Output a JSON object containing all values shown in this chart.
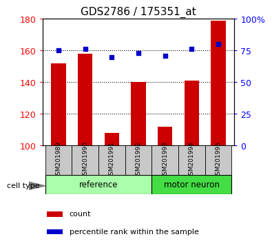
{
  "title": "GDS2786 / 175351_at",
  "categories": [
    "GSM201989",
    "GSM201990",
    "GSM201991",
    "GSM201992",
    "GSM201993",
    "GSM201994",
    "GSM201995"
  ],
  "bar_values": [
    152,
    158,
    108,
    140,
    112,
    141,
    179
  ],
  "scatter_values": [
    75,
    76,
    70,
    73,
    71,
    76,
    80
  ],
  "bar_color": "#cc0000",
  "scatter_color": "#0000cc",
  "ylim_left": [
    100,
    180
  ],
  "ylim_right": [
    0,
    100
  ],
  "yticks_left": [
    100,
    120,
    140,
    160,
    180
  ],
  "yticks_right": [
    0,
    25,
    50,
    75,
    100
  ],
  "ytick_labels_right": [
    "0",
    "25",
    "50",
    "75",
    "100%"
  ],
  "group_ref_label": "reference",
  "group_mn_label": "motor neuron",
  "ref_count": 4,
  "cell_type_label": "cell type",
  "legend_bar_label": "count",
  "legend_scatter_label": "percentile rank within the sample",
  "sample_bg_color": "#c8c8c8",
  "ref_color": "#aaffaa",
  "mn_color": "#44dd44",
  "title_fontsize": 11,
  "tick_fontsize": 9,
  "label_fontsize": 9
}
